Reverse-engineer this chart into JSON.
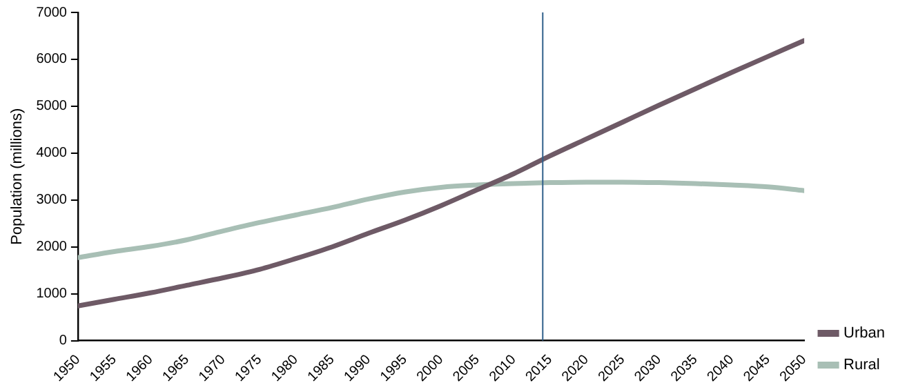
{
  "chart_data": {
    "type": "line",
    "ylabel": "Population (millions)",
    "x": [
      1950,
      1955,
      1960,
      1965,
      1970,
      1975,
      1980,
      1985,
      1990,
      1995,
      2000,
      2005,
      2010,
      2015,
      2020,
      2025,
      2030,
      2035,
      2040,
      2045,
      2050
    ],
    "series": [
      {
        "name": "Urban",
        "color": "#6e5a66",
        "values": [
          740,
          880,
          1020,
          1180,
          1340,
          1520,
          1750,
          2000,
          2290,
          2570,
          2880,
          3220,
          3560,
          3940,
          4300,
          4660,
          5020,
          5370,
          5720,
          6060,
          6400
        ]
      },
      {
        "name": "Rural",
        "color": "#a8bfb5",
        "values": [
          1770,
          1900,
          2010,
          2150,
          2340,
          2520,
          2680,
          2840,
          3020,
          3170,
          3270,
          3320,
          3350,
          3370,
          3380,
          3380,
          3370,
          3350,
          3320,
          3280,
          3200
        ]
      }
    ],
    "xlim": [
      1950,
      2050
    ],
    "xticks": [
      1950,
      1955,
      1960,
      1965,
      1970,
      1975,
      1980,
      1985,
      1990,
      1995,
      2000,
      2005,
      2010,
      2015,
      2020,
      2025,
      2030,
      2035,
      2040,
      2045,
      2050
    ],
    "ylim": [
      0,
      7000
    ],
    "yticks": [
      0,
      1000,
      2000,
      3000,
      4000,
      5000,
      6000,
      7000
    ],
    "ref_lines": [
      {
        "axis": "x",
        "value": 2014,
        "color": "#2f5f8a"
      }
    ],
    "grid": false,
    "legend": "bottom right",
    "marker": "none",
    "line_style": "solid"
  }
}
